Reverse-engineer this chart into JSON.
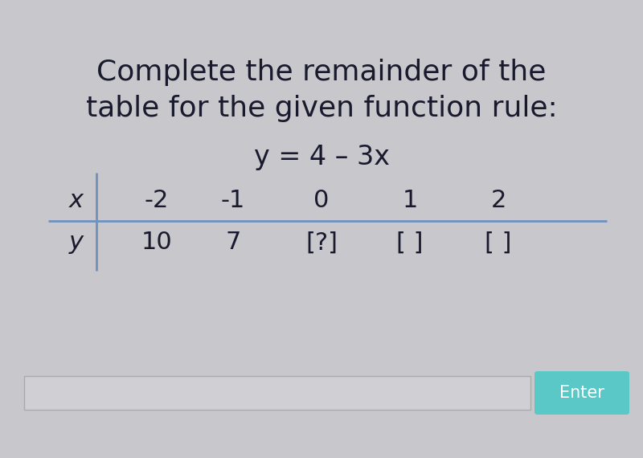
{
  "title_line1": "Complete the remainder of the",
  "title_line2": "table for the given function rule:",
  "function_rule": "y = 4 – 3x",
  "background_color": "#c8c8cc",
  "title_color": "#1a1a2e",
  "title_fontsize": 26,
  "formula_fontsize": 24,
  "table_fontsize": 22,
  "x_values": [
    "-2",
    "-1",
    "0",
    "1",
    "2"
  ],
  "y_values": [
    "10",
    "7",
    "[?]",
    "[ ]",
    "[ ]"
  ],
  "x_label": "x",
  "y_label": "y",
  "divider_color": "#7090c0",
  "vert_divider_color": "#7090c0",
  "enter_button_color": "#5bc8c8",
  "enter_button_text": "Enter",
  "enter_button_text_color": "#ffffff",
  "input_box_color": "#d0d0d4",
  "input_border_color": "#aaaaaa"
}
